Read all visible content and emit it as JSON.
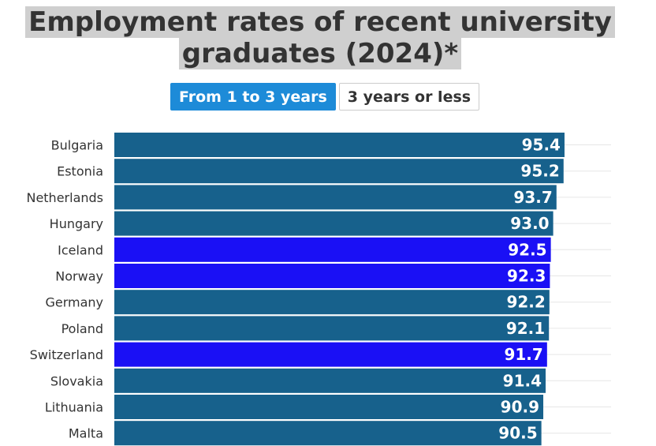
{
  "title_line1": "Employment rates of recent university",
  "title_line2": "graduates (2024)*",
  "toggle": {
    "active": "From 1 to 3 years",
    "inactive": "3 years or less"
  },
  "colors": {
    "default_bar": "#17618c",
    "highlight_bar": "#1a10f5",
    "active_button": "#1d8bd8"
  },
  "chart_data": {
    "type": "bar",
    "orientation": "horizontal",
    "categories": [
      "Bulgaria",
      "Estonia",
      "Netherlands",
      "Hungary",
      "Iceland",
      "Norway",
      "Germany",
      "Poland",
      "Switzerland",
      "Slovakia",
      "Lithuania",
      "Malta"
    ],
    "values": [
      95.4,
      95.2,
      93.7,
      93.0,
      92.5,
      92.3,
      92.2,
      92.1,
      91.7,
      91.4,
      90.9,
      90.5
    ],
    "value_labels": [
      "95.4",
      "95.2",
      "93.7",
      "93.0",
      "92.5",
      "92.3",
      "92.2",
      "92.1",
      "91.7",
      "91.4",
      "90.9",
      "90.5"
    ],
    "highlighted": [
      "Iceland",
      "Norway",
      "Switzerland"
    ],
    "xlim": [
      0,
      100
    ],
    "grid": true
  }
}
